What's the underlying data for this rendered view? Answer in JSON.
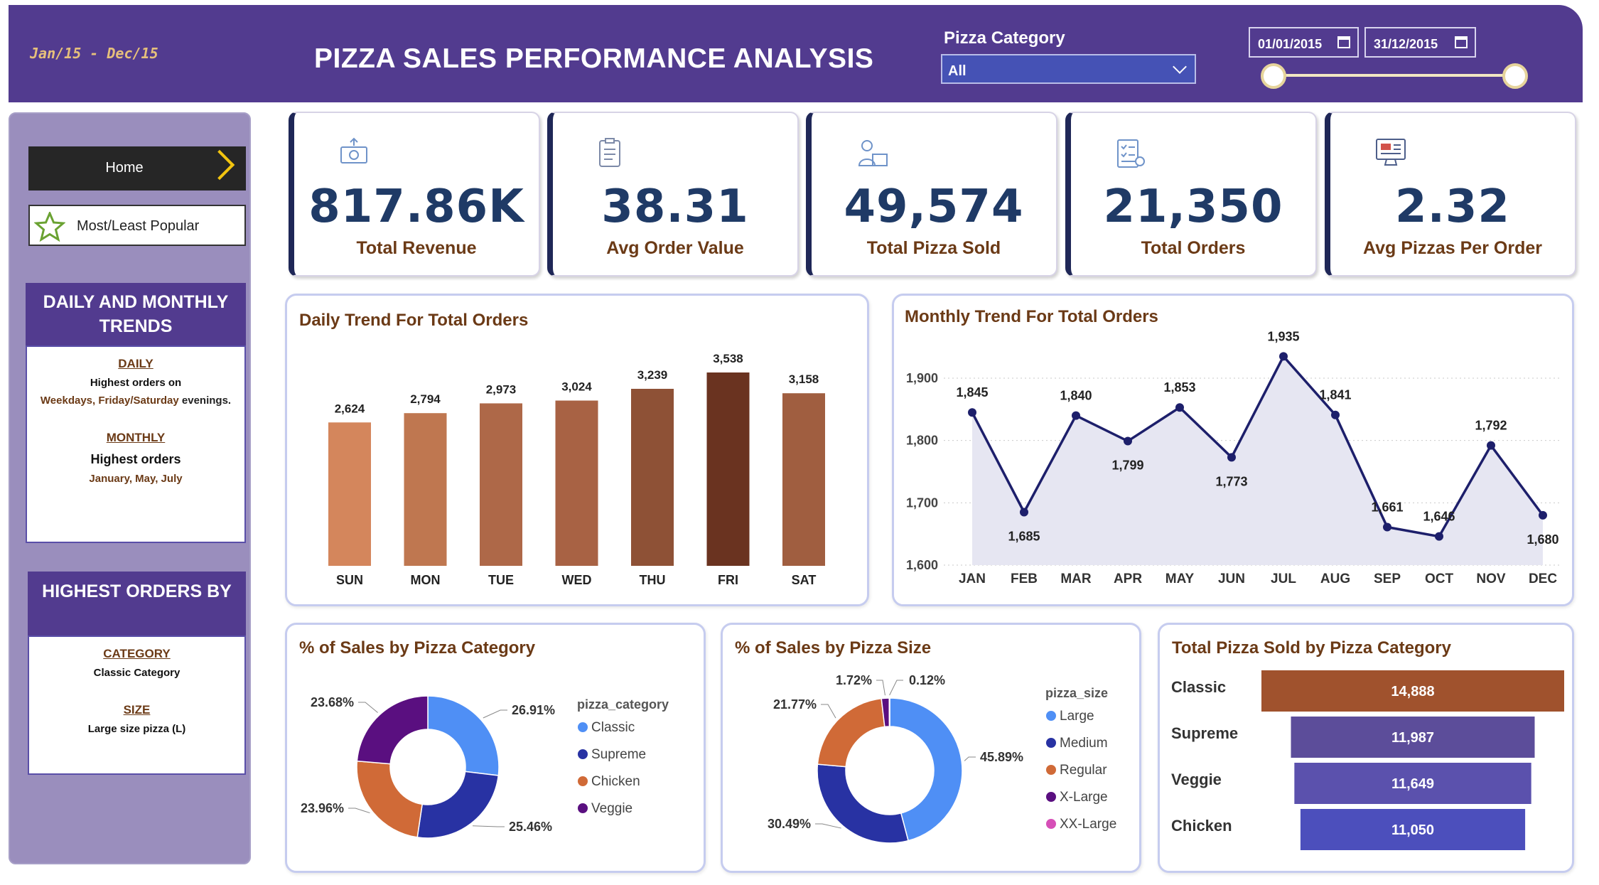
{
  "header": {
    "period": "Jan/15  -  Dec/15",
    "title": "PIZZA SALES PERFORMANCE ANALYSIS",
    "category_label": "Pizza Category",
    "category_value": "All",
    "date_start": "01/01/2015",
    "date_end": "31/12/2015"
  },
  "sidebar": {
    "home": "Home",
    "popular": "Most/Least Popular",
    "trends_title": "DAILY AND MONTHLY TRENDS",
    "daily_link": "DAILY",
    "daily_text1": "Highest orders on",
    "daily_text2a": "Weekdays, Friday/Saturday",
    "daily_text2b": " evenings.",
    "monthly_link": "MONTHLY",
    "monthly_text": "Highest orders",
    "monthly_months": "January, May, July",
    "highest_title": "HIGHEST ORDERS BY",
    "category_link": "CATEGORY",
    "category_text": "Classic Category",
    "size_link": "SIZE",
    "size_text": "Large size pizza (L)"
  },
  "kpis": [
    {
      "value": "817.86K",
      "label": "Total Revenue",
      "icon": "money-icon"
    },
    {
      "value": "38.31",
      "label": "Avg Order Value",
      "icon": "clipboard-icon"
    },
    {
      "value": "49,574",
      "label": "Total Pizza Sold",
      "icon": "delivery-icon"
    },
    {
      "value": "21,350",
      "label": "Total Orders",
      "icon": "checklist-icon"
    },
    {
      "value": "2.32",
      "label": "Avg Pizzas Per Order",
      "icon": "monitor-icon"
    }
  ],
  "colors": {
    "header": "#523b8f",
    "brown_title": "#6b3a16",
    "kpi_value": "#1f3a66",
    "line": "#1d1f6b",
    "classic": "#4f8ff5",
    "supreme": "#2832a3",
    "chicken": "#d06a37",
    "veggie": "#5a0f80",
    "xxlarge": "#d64fb7"
  },
  "chart_data": [
    {
      "type": "bar",
      "title": "Daily Trend For Total Orders",
      "categories": [
        "SUN",
        "MON",
        "TUE",
        "WED",
        "THU",
        "FRI",
        "SAT"
      ],
      "values": [
        2624,
        2794,
        2973,
        3024,
        3239,
        3538,
        3158
      ],
      "labels": [
        "2,624",
        "2,794",
        "2,973",
        "3,024",
        "3,239",
        "3,538",
        "3,158"
      ],
      "colors": [
        "#d4865c",
        "#bf7750",
        "#ae6848",
        "#a86244",
        "#8e5136",
        "#6a3320",
        "#a05e40"
      ],
      "ylim": [
        0,
        3538
      ]
    },
    {
      "type": "area",
      "title": "Monthly Trend For Total Orders",
      "categories": [
        "JAN",
        "FEB",
        "MAR",
        "APR",
        "MAY",
        "JUN",
        "JUL",
        "AUG",
        "SEP",
        "OCT",
        "NOV",
        "DEC"
      ],
      "values": [
        1845,
        1685,
        1840,
        1799,
        1853,
        1773,
        1935,
        1841,
        1661,
        1646,
        1792,
        1680
      ],
      "labels": [
        "1,845",
        "1,685",
        "1,840",
        "1,799",
        "1,853",
        "1,773",
        "1,935",
        "1,841",
        "1,661",
        "1,646",
        "1,792",
        "1,680"
      ],
      "yticks": [
        1600,
        1700,
        1800,
        1900
      ],
      "ytick_labels": [
        "1,600",
        "1,700",
        "1,800",
        "1,900"
      ],
      "ylim": [
        1600,
        1900
      ],
      "grid": true
    },
    {
      "type": "pie",
      "title": "% of Sales by Pizza Category",
      "legend_title": "pizza_category",
      "labels": [
        "Classic",
        "Supreme",
        "Chicken",
        "Veggie"
      ],
      "values": [
        26.91,
        25.46,
        23.96,
        23.68
      ],
      "value_labels": [
        "26.91%",
        "25.46%",
        "23.96%",
        "23.68%"
      ],
      "legend": "right"
    },
    {
      "type": "pie",
      "title": "% of Sales by Pizza Size",
      "legend_title": "pizza_size",
      "labels": [
        "Large",
        "Medium",
        "Regular",
        "X-Large",
        "XX-Large"
      ],
      "values": [
        45.89,
        30.49,
        21.77,
        1.72,
        0.12
      ],
      "value_labels": [
        "45.89%",
        "30.49%",
        "21.77%",
        "1.72%",
        "0.12%"
      ],
      "legend": "right"
    },
    {
      "type": "bar",
      "title": "Total Pizza Sold by Pizza Category",
      "orientation": "horizontal",
      "categories": [
        "Classic",
        "Supreme",
        "Veggie",
        "Chicken"
      ],
      "values": [
        14888,
        11987,
        11649,
        11050
      ],
      "labels": [
        "14,888",
        "11,987",
        "11,649",
        "11,050"
      ],
      "colors": [
        "#a0522d",
        "#5c4d9a",
        "#5b51ad",
        "#4c4fbc"
      ]
    }
  ]
}
